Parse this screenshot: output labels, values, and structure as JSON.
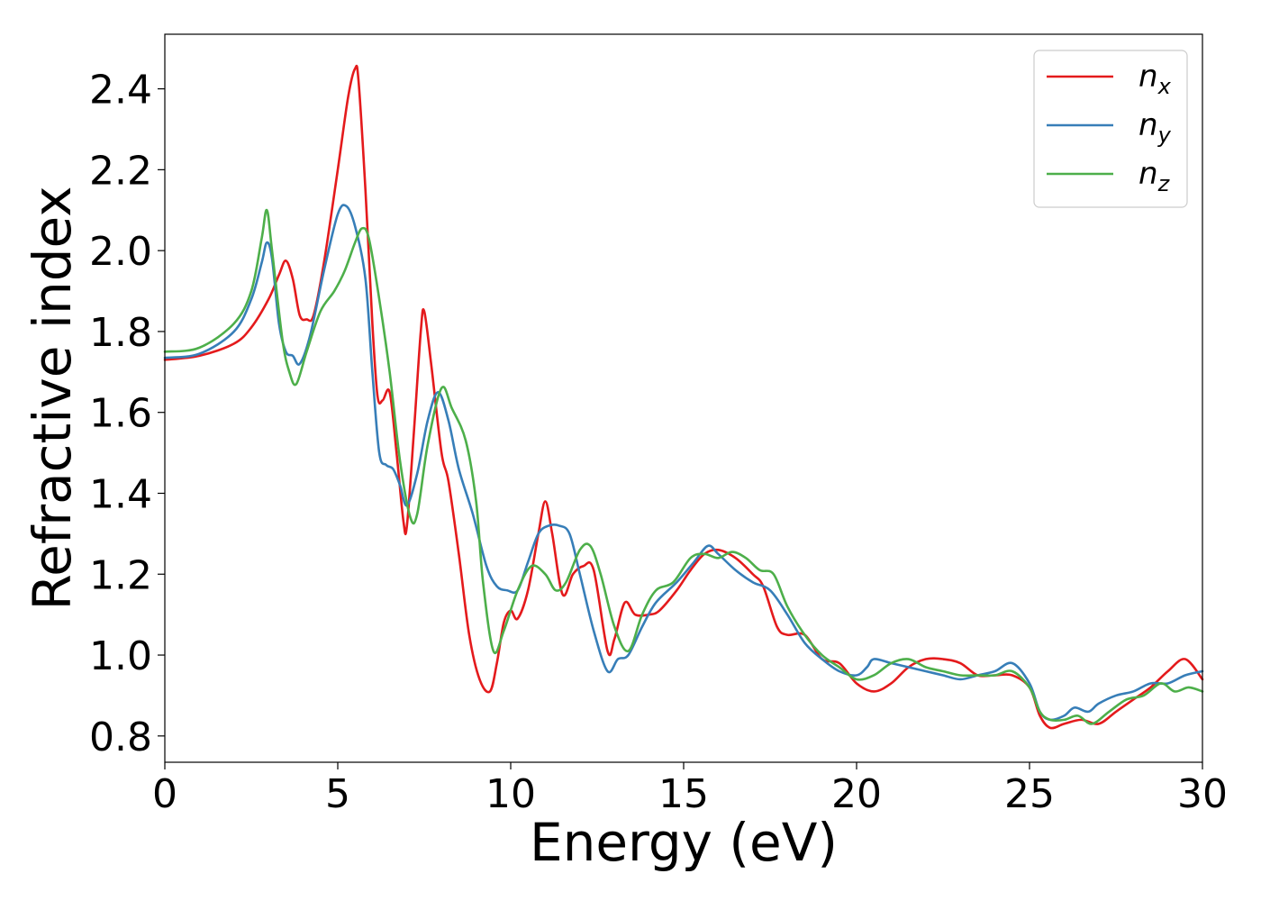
{
  "chart_data": {
    "type": "line",
    "xlabel": "Energy (eV)",
    "ylabel": "Refractive index",
    "xlim": [
      0,
      30
    ],
    "ylim": [
      0.735,
      2.535
    ],
    "xticks": [
      0,
      5,
      10,
      15,
      20,
      25,
      30
    ],
    "xtick_labels": [
      "0",
      "5",
      "10",
      "15",
      "20",
      "25",
      "30"
    ],
    "yticks": [
      0.8,
      1.0,
      1.2,
      1.4,
      1.6,
      1.8,
      2.0,
      2.2,
      2.4
    ],
    "ytick_labels": [
      "0.8",
      "1.0",
      "1.2",
      "1.4",
      "1.6",
      "1.8",
      "2.0",
      "2.2",
      "2.4"
    ],
    "grid": false,
    "legend_position": "top-right",
    "series": [
      {
        "name": "n",
        "subscript": "x",
        "color": "#e41a1c",
        "points": [
          [
            0,
            1.73
          ],
          [
            1,
            1.74
          ],
          [
            2,
            1.77
          ],
          [
            2.5,
            1.81
          ],
          [
            3,
            1.88
          ],
          [
            3.3,
            1.94
          ],
          [
            3.5,
            1.975
          ],
          [
            3.7,
            1.93
          ],
          [
            3.9,
            1.84
          ],
          [
            4.1,
            1.83
          ],
          [
            4.3,
            1.84
          ],
          [
            4.6,
            1.97
          ],
          [
            5,
            2.2
          ],
          [
            5.3,
            2.38
          ],
          [
            5.5,
            2.45
          ],
          [
            5.6,
            2.42
          ],
          [
            5.8,
            2.15
          ],
          [
            6,
            1.82
          ],
          [
            6.15,
            1.64
          ],
          [
            6.3,
            1.63
          ],
          [
            6.5,
            1.65
          ],
          [
            6.7,
            1.5
          ],
          [
            6.9,
            1.33
          ],
          [
            7,
            1.32
          ],
          [
            7.2,
            1.55
          ],
          [
            7.4,
            1.8
          ],
          [
            7.5,
            1.85
          ],
          [
            7.7,
            1.72
          ],
          [
            8,
            1.5
          ],
          [
            8.2,
            1.43
          ],
          [
            8.5,
            1.25
          ],
          [
            8.8,
            1.05
          ],
          [
            9.1,
            0.94
          ],
          [
            9.4,
            0.91
          ],
          [
            9.6,
            0.98
          ],
          [
            9.8,
            1.08
          ],
          [
            10,
            1.11
          ],
          [
            10.2,
            1.09
          ],
          [
            10.5,
            1.16
          ],
          [
            10.8,
            1.3
          ],
          [
            11,
            1.38
          ],
          [
            11.2,
            1.3
          ],
          [
            11.5,
            1.15
          ],
          [
            11.8,
            1.2
          ],
          [
            12.1,
            1.22
          ],
          [
            12.4,
            1.21
          ],
          [
            12.8,
            1.01
          ],
          [
            13,
            1.04
          ],
          [
            13.3,
            1.13
          ],
          [
            13.6,
            1.1
          ],
          [
            14,
            1.1
          ],
          [
            14.3,
            1.11
          ],
          [
            14.8,
            1.16
          ],
          [
            15.2,
            1.21
          ],
          [
            15.6,
            1.25
          ],
          [
            16,
            1.26
          ],
          [
            16.5,
            1.24
          ],
          [
            17,
            1.2
          ],
          [
            17.3,
            1.17
          ],
          [
            17.7,
            1.07
          ],
          [
            18,
            1.05
          ],
          [
            18.5,
            1.05
          ],
          [
            19,
            0.99
          ],
          [
            19.5,
            0.98
          ],
          [
            20,
            0.93
          ],
          [
            20.5,
            0.91
          ],
          [
            21,
            0.93
          ],
          [
            21.5,
            0.97
          ],
          [
            22,
            0.99
          ],
          [
            22.5,
            0.99
          ],
          [
            23,
            0.98
          ],
          [
            23.5,
            0.95
          ],
          [
            24,
            0.95
          ],
          [
            24.5,
            0.95
          ],
          [
            25,
            0.92
          ],
          [
            25.3,
            0.85
          ],
          [
            25.6,
            0.82
          ],
          [
            26,
            0.83
          ],
          [
            26.5,
            0.84
          ],
          [
            27,
            0.83
          ],
          [
            27.5,
            0.86
          ],
          [
            28,
            0.89
          ],
          [
            28.5,
            0.92
          ],
          [
            29,
            0.96
          ],
          [
            29.5,
            0.99
          ],
          [
            30,
            0.94
          ]
        ]
      },
      {
        "name": "n",
        "subscript": "y",
        "color": "#377eb8",
        "points": [
          [
            0,
            1.735
          ],
          [
            1,
            1.745
          ],
          [
            2,
            1.8
          ],
          [
            2.5,
            1.88
          ],
          [
            2.8,
            1.97
          ],
          [
            2.95,
            2.02
          ],
          [
            3.1,
            1.98
          ],
          [
            3.3,
            1.82
          ],
          [
            3.5,
            1.75
          ],
          [
            3.7,
            1.74
          ],
          [
            3.9,
            1.72
          ],
          [
            4.2,
            1.79
          ],
          [
            4.6,
            1.95
          ],
          [
            5,
            2.09
          ],
          [
            5.25,
            2.11
          ],
          [
            5.5,
            2.06
          ],
          [
            5.8,
            1.93
          ],
          [
            6,
            1.7
          ],
          [
            6.2,
            1.5
          ],
          [
            6.4,
            1.47
          ],
          [
            6.6,
            1.46
          ],
          [
            6.8,
            1.42
          ],
          [
            7,
            1.37
          ],
          [
            7.3,
            1.45
          ],
          [
            7.6,
            1.58
          ],
          [
            7.9,
            1.65
          ],
          [
            8.2,
            1.58
          ],
          [
            8.5,
            1.46
          ],
          [
            8.9,
            1.35
          ],
          [
            9.3,
            1.22
          ],
          [
            9.6,
            1.17
          ],
          [
            9.9,
            1.16
          ],
          [
            10.2,
            1.16
          ],
          [
            10.5,
            1.23
          ],
          [
            10.8,
            1.3
          ],
          [
            11.1,
            1.32
          ],
          [
            11.4,
            1.32
          ],
          [
            11.7,
            1.3
          ],
          [
            12,
            1.2
          ],
          [
            12.4,
            1.06
          ],
          [
            12.8,
            0.96
          ],
          [
            13.1,
            0.99
          ],
          [
            13.4,
            1.0
          ],
          [
            13.8,
            1.07
          ],
          [
            14.2,
            1.13
          ],
          [
            14.8,
            1.18
          ],
          [
            15.3,
            1.23
          ],
          [
            15.7,
            1.27
          ],
          [
            16,
            1.25
          ],
          [
            16.5,
            1.21
          ],
          [
            17,
            1.18
          ],
          [
            17.5,
            1.16
          ],
          [
            18,
            1.1
          ],
          [
            18.5,
            1.03
          ],
          [
            19,
            0.99
          ],
          [
            19.5,
            0.96
          ],
          [
            20,
            0.95
          ],
          [
            20.3,
            0.97
          ],
          [
            20.5,
            0.99
          ],
          [
            21,
            0.98
          ],
          [
            21.5,
            0.97
          ],
          [
            22,
            0.96
          ],
          [
            22.5,
            0.95
          ],
          [
            23,
            0.94
          ],
          [
            23.5,
            0.95
          ],
          [
            24,
            0.96
          ],
          [
            24.5,
            0.98
          ],
          [
            25,
            0.93
          ],
          [
            25.3,
            0.86
          ],
          [
            25.6,
            0.84
          ],
          [
            26,
            0.85
          ],
          [
            26.3,
            0.87
          ],
          [
            26.7,
            0.86
          ],
          [
            27,
            0.88
          ],
          [
            27.5,
            0.9
          ],
          [
            28,
            0.91
          ],
          [
            28.5,
            0.93
          ],
          [
            29,
            0.93
          ],
          [
            29.5,
            0.95
          ],
          [
            30,
            0.96
          ]
        ]
      },
      {
        "name": "n",
        "subscript": "z",
        "color": "#4daf4a",
        "points": [
          [
            0,
            1.75
          ],
          [
            1,
            1.76
          ],
          [
            2,
            1.82
          ],
          [
            2.5,
            1.9
          ],
          [
            2.8,
            2.03
          ],
          [
            2.95,
            2.1
          ],
          [
            3.1,
            2.0
          ],
          [
            3.4,
            1.78
          ],
          [
            3.6,
            1.7
          ],
          [
            3.8,
            1.67
          ],
          [
            4.1,
            1.75
          ],
          [
            4.5,
            1.85
          ],
          [
            4.9,
            1.9
          ],
          [
            5.2,
            1.95
          ],
          [
            5.5,
            2.02
          ],
          [
            5.7,
            2.055
          ],
          [
            5.9,
            2.03
          ],
          [
            6.2,
            1.88
          ],
          [
            6.5,
            1.7
          ],
          [
            6.8,
            1.48
          ],
          [
            7.1,
            1.34
          ],
          [
            7.3,
            1.35
          ],
          [
            7.6,
            1.52
          ],
          [
            8,
            1.66
          ],
          [
            8.3,
            1.61
          ],
          [
            8.7,
            1.53
          ],
          [
            9,
            1.38
          ],
          [
            9.2,
            1.18
          ],
          [
            9.5,
            1.01
          ],
          [
            9.8,
            1.06
          ],
          [
            10.2,
            1.16
          ],
          [
            10.6,
            1.22
          ],
          [
            11,
            1.2
          ],
          [
            11.3,
            1.16
          ],
          [
            11.6,
            1.18
          ],
          [
            12,
            1.26
          ],
          [
            12.3,
            1.27
          ],
          [
            12.6,
            1.2
          ],
          [
            13,
            1.07
          ],
          [
            13.4,
            1.01
          ],
          [
            13.8,
            1.1
          ],
          [
            14.2,
            1.16
          ],
          [
            14.7,
            1.18
          ],
          [
            15.2,
            1.24
          ],
          [
            15.6,
            1.25
          ],
          [
            16,
            1.24
          ],
          [
            16.4,
            1.255
          ],
          [
            16.8,
            1.24
          ],
          [
            17.2,
            1.21
          ],
          [
            17.6,
            1.2
          ],
          [
            18,
            1.12
          ],
          [
            18.5,
            1.05
          ],
          [
            19,
            1.0
          ],
          [
            19.5,
            0.97
          ],
          [
            20,
            0.94
          ],
          [
            20.5,
            0.95
          ],
          [
            21,
            0.98
          ],
          [
            21.5,
            0.99
          ],
          [
            22,
            0.97
          ],
          [
            22.5,
            0.96
          ],
          [
            23,
            0.95
          ],
          [
            23.5,
            0.95
          ],
          [
            24,
            0.95
          ],
          [
            24.5,
            0.96
          ],
          [
            25,
            0.92
          ],
          [
            25.3,
            0.86
          ],
          [
            25.6,
            0.84
          ],
          [
            26,
            0.84
          ],
          [
            26.4,
            0.85
          ],
          [
            26.8,
            0.83
          ],
          [
            27.3,
            0.86
          ],
          [
            27.8,
            0.89
          ],
          [
            28.3,
            0.9
          ],
          [
            28.8,
            0.93
          ],
          [
            29.2,
            0.91
          ],
          [
            29.6,
            0.92
          ],
          [
            30,
            0.91
          ]
        ]
      }
    ]
  }
}
